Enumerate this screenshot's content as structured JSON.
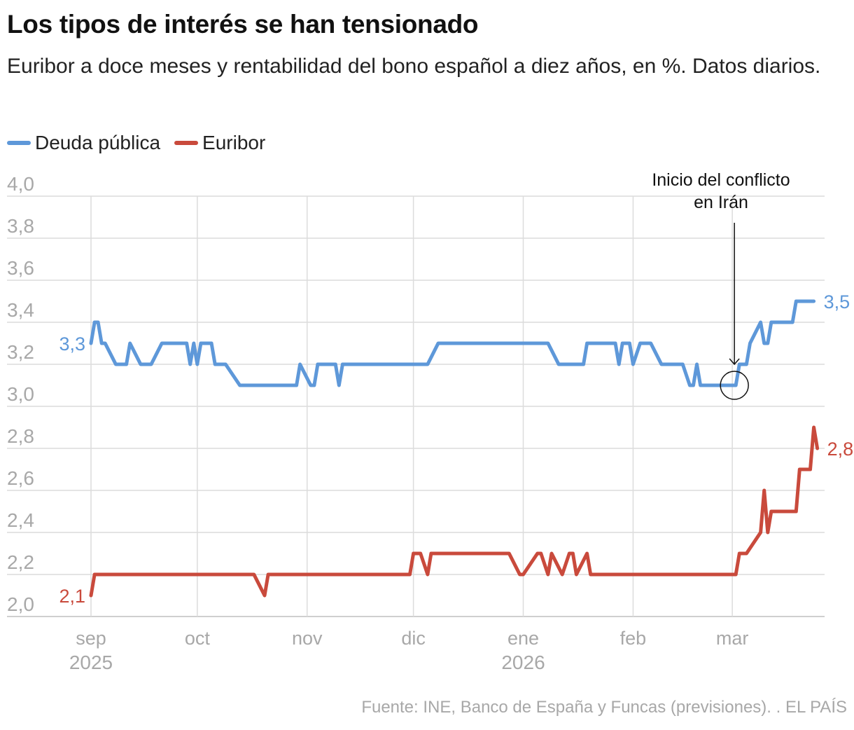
{
  "title": "Los tipos de interés se han tensionado",
  "subtitle": "Euribor a doce meses y rentabilidad del bono español a diez años, en %. Datos diarios.",
  "source": "Fuente: INE, Banco de España y Funcas (previsiones). . EL PAÍS",
  "colors": {
    "deuda": "#5e98d9",
    "euribor": "#c94a3c",
    "grid": "#dcdcdc",
    "tick": "#a8a8a8"
  },
  "chart_data": {
    "type": "line",
    "ylim": [
      2.0,
      4.0
    ],
    "y_ticks": [
      "2,0",
      "2,2",
      "2,4",
      "2,6",
      "2,8",
      "3,0",
      "3,2",
      "3,4",
      "3,6",
      "3,8",
      "4,0"
    ],
    "x_range": [
      "2025-09-01",
      "2026-03-31"
    ],
    "x_ticks": [
      {
        "date": "2025-09-01",
        "label": "sep",
        "year": "2025"
      },
      {
        "date": "2025-10-01",
        "label": "oct",
        "year": ""
      },
      {
        "date": "2025-11-01",
        "label": "nov",
        "year": ""
      },
      {
        "date": "2025-12-01",
        "label": "dic",
        "year": ""
      },
      {
        "date": "2026-01-01",
        "label": "ene",
        "year": "2026"
      },
      {
        "date": "2026-02-01",
        "label": "feb",
        "year": ""
      },
      {
        "date": "2026-03-01",
        "label": "mar",
        "year": ""
      }
    ],
    "grid": true,
    "legend": "top-left",
    "series": [
      {
        "name": "Deuda pública",
        "key": "deuda",
        "start_label": "3,3",
        "end_label": "3,5",
        "points": [
          [
            "2025-09-01",
            3.3
          ],
          [
            "2025-09-02",
            3.4
          ],
          [
            "2025-09-03",
            3.4
          ],
          [
            "2025-09-04",
            3.3
          ],
          [
            "2025-09-05",
            3.3
          ],
          [
            "2025-09-08",
            3.2
          ],
          [
            "2025-09-11",
            3.2
          ],
          [
            "2025-09-12",
            3.3
          ],
          [
            "2025-09-15",
            3.2
          ],
          [
            "2025-09-18",
            3.2
          ],
          [
            "2025-09-21",
            3.3
          ],
          [
            "2025-09-28",
            3.3
          ],
          [
            "2025-09-29",
            3.2
          ],
          [
            "2025-09-30",
            3.3
          ],
          [
            "2025-10-01",
            3.2
          ],
          [
            "2025-10-02",
            3.3
          ],
          [
            "2025-10-05",
            3.3
          ],
          [
            "2025-10-06",
            3.2
          ],
          [
            "2025-10-09",
            3.2
          ],
          [
            "2025-10-13",
            3.1
          ],
          [
            "2025-10-29",
            3.1
          ],
          [
            "2025-10-30",
            3.2
          ],
          [
            "2025-11-02",
            3.1
          ],
          [
            "2025-11-03",
            3.1
          ],
          [
            "2025-11-04",
            3.2
          ],
          [
            "2025-11-09",
            3.2
          ],
          [
            "2025-11-10",
            3.1
          ],
          [
            "2025-11-11",
            3.2
          ],
          [
            "2025-12-05",
            3.2
          ],
          [
            "2025-12-08",
            3.3
          ],
          [
            "2026-01-08",
            3.3
          ],
          [
            "2026-01-11",
            3.2
          ],
          [
            "2026-01-18",
            3.2
          ],
          [
            "2026-01-19",
            3.3
          ],
          [
            "2026-01-27",
            3.3
          ],
          [
            "2026-01-28",
            3.2
          ],
          [
            "2026-01-29",
            3.3
          ],
          [
            "2026-01-31",
            3.3
          ],
          [
            "2026-02-01",
            3.2
          ],
          [
            "2026-02-03",
            3.3
          ],
          [
            "2026-02-06",
            3.3
          ],
          [
            "2026-02-09",
            3.2
          ],
          [
            "2026-02-15",
            3.2
          ],
          [
            "2026-02-17",
            3.1
          ],
          [
            "2026-02-18",
            3.1
          ],
          [
            "2026-02-19",
            3.2
          ],
          [
            "2026-02-20",
            3.1
          ],
          [
            "2026-03-02",
            3.1
          ],
          [
            "2026-03-03",
            3.2
          ],
          [
            "2026-03-05",
            3.2
          ],
          [
            "2026-03-06",
            3.3
          ],
          [
            "2026-03-09",
            3.4
          ],
          [
            "2026-03-10",
            3.3
          ],
          [
            "2026-03-11",
            3.3
          ],
          [
            "2026-03-12",
            3.4
          ],
          [
            "2026-03-18",
            3.4
          ],
          [
            "2026-03-19",
            3.5
          ],
          [
            "2026-03-24",
            3.5
          ]
        ]
      },
      {
        "name": "Euribor",
        "key": "euribor",
        "start_label": "2,1",
        "end_label": "2,8",
        "points": [
          [
            "2025-09-01",
            2.1
          ],
          [
            "2025-09-02",
            2.2
          ],
          [
            "2025-10-17",
            2.2
          ],
          [
            "2025-10-20",
            2.1
          ],
          [
            "2025-10-21",
            2.2
          ],
          [
            "2025-11-30",
            2.2
          ],
          [
            "2025-12-01",
            2.3
          ],
          [
            "2025-12-03",
            2.3
          ],
          [
            "2025-12-05",
            2.2
          ],
          [
            "2025-12-06",
            2.3
          ],
          [
            "2025-12-28",
            2.3
          ],
          [
            "2025-12-31",
            2.2
          ],
          [
            "2026-01-01",
            2.2
          ],
          [
            "2026-01-05",
            2.3
          ],
          [
            "2026-01-06",
            2.3
          ],
          [
            "2026-01-08",
            2.2
          ],
          [
            "2026-01-09",
            2.3
          ],
          [
            "2026-01-12",
            2.2
          ],
          [
            "2026-01-14",
            2.3
          ],
          [
            "2026-01-15",
            2.3
          ],
          [
            "2026-01-16",
            2.2
          ],
          [
            "2026-01-19",
            2.3
          ],
          [
            "2026-01-20",
            2.2
          ],
          [
            "2026-03-02",
            2.2
          ],
          [
            "2026-03-03",
            2.3
          ],
          [
            "2026-03-05",
            2.3
          ],
          [
            "2026-03-09",
            2.4
          ],
          [
            "2026-03-10",
            2.6
          ],
          [
            "2026-03-11",
            2.4
          ],
          [
            "2026-03-12",
            2.5
          ],
          [
            "2026-03-19",
            2.5
          ],
          [
            "2026-03-20",
            2.7
          ],
          [
            "2026-03-23",
            2.7
          ],
          [
            "2026-03-24",
            2.9
          ],
          [
            "2026-03-25",
            2.8
          ]
        ]
      }
    ],
    "annotation": {
      "text_line1": "Inicio del conflicto",
      "text_line2": "en Irán",
      "date": "2026-03-01",
      "value": 3.1
    }
  }
}
